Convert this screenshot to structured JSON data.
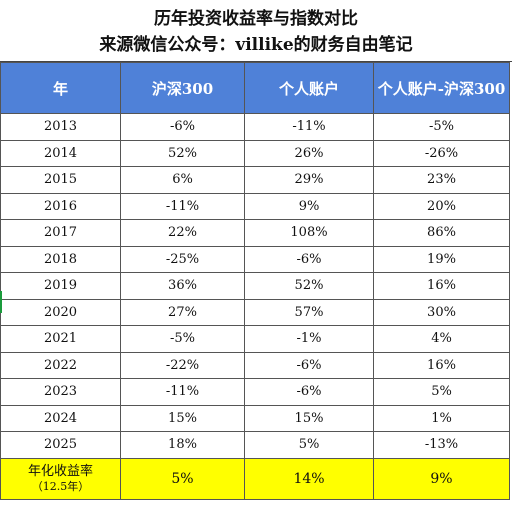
{
  "title": {
    "line1": "历年投资收益率与指数对比",
    "line2": "来源微信公众号：villike的财务自由笔记"
  },
  "table": {
    "headers": [
      "年",
      "沪深300",
      "个人账户",
      "个人账户-沪深300"
    ],
    "rows": [
      [
        "2013",
        "-6%",
        "-11%",
        "-5%"
      ],
      [
        "2014",
        "52%",
        "26%",
        "-26%"
      ],
      [
        "2015",
        "6%",
        "29%",
        "23%"
      ],
      [
        "2016",
        "-11%",
        "9%",
        "20%"
      ],
      [
        "2017",
        "22%",
        "108%",
        "86%"
      ],
      [
        "2018",
        "-25%",
        "-6%",
        "19%"
      ],
      [
        "2019",
        "36%",
        "52%",
        "16%"
      ],
      [
        "2020",
        "27%",
        "57%",
        "30%"
      ],
      [
        "2021",
        "-5%",
        "-1%",
        "4%"
      ],
      [
        "2022",
        "-22%",
        "-6%",
        "16%"
      ],
      [
        "2023",
        "-11%",
        "-6%",
        "5%"
      ],
      [
        "2024",
        "15%",
        "15%",
        "1%"
      ],
      [
        "2025",
        "18%",
        "5%",
        "-13%"
      ]
    ],
    "summary": {
      "label": "年化收益率",
      "sublabel": "（12.5年）",
      "values": [
        "5%",
        "14%",
        "9%"
      ]
    }
  },
  "colors": {
    "header_bg": "#4f81d8",
    "summary_bg": "#ffff00",
    "selection_marker": "#1a9b3c"
  }
}
